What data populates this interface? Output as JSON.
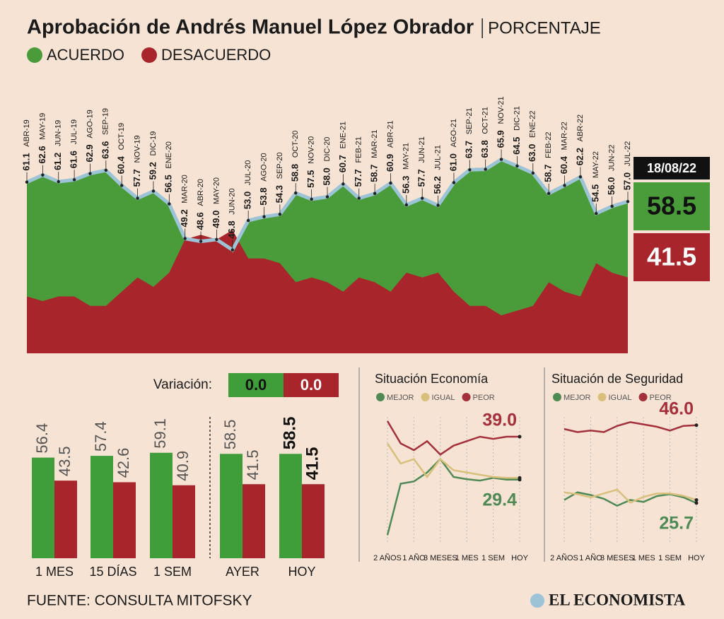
{
  "chart_data": [
    {
      "type": "area",
      "title": "Aprobación de Andrés Manuel López Obrador",
      "subtitle": "PORCENTAJE",
      "categories": [
        "ABR-19",
        "MAY-19",
        "JUN-19",
        "JUL-19",
        "AGO-19",
        "SEP-19",
        "OCT-19",
        "NOV-19",
        "DIC-19",
        "ENE-20",
        "MAR-20",
        "ABR-20",
        "MAY-20",
        "JUN-20",
        "JUL-20",
        "AGO-20",
        "SEP-20",
        "OCT-20",
        "NOV-20",
        "DIC-20",
        "ENE-21",
        "FEB-21",
        "MAR-21",
        "ABR-21",
        "MAY-21",
        "JUN-21",
        "JUL-21",
        "AGO-21",
        "SEP-21",
        "OCT-21",
        "NOV-21",
        "DIC-21",
        "ENE-22",
        "FEB-22",
        "MAR-22",
        "ABR-22",
        "MAY-22",
        "JUN-22",
        "JUL-22"
      ],
      "series": [
        {
          "name": "ACUERDO",
          "color": "#4a9c3a",
          "values": [
            61.1,
            62.6,
            61.2,
            61.6,
            62.9,
            63.6,
            60.4,
            57.7,
            59.2,
            56.5,
            49.2,
            48.6,
            49,
            46.8,
            53,
            53.8,
            54.3,
            58.8,
            57.5,
            58,
            60.7,
            57.7,
            58.7,
            60.9,
            56.3,
            57.7,
            56.2,
            61,
            63.7,
            63.8,
            65.9,
            64.5,
            63,
            58.7,
            60.4,
            62.2,
            54.5,
            56,
            57
          ],
          "value_labels": [
            "61.1",
            "62.6",
            "61.2",
            "61.6",
            "62.9",
            "63.6",
            "60.4",
            "57.7",
            "59.2",
            "56.5",
            "49.2",
            "48.6",
            "49.0",
            "46.8",
            "53.0",
            "53.8",
            "54.3",
            "58.8",
            "57.5",
            "58.0",
            "60.7",
            "57.7",
            "58.7",
            "60.9",
            "56.3",
            "57.7",
            "56.2",
            "61.0",
            "63.7",
            "63.8",
            "65.9",
            "64.5",
            "63.0",
            "58.7",
            "60.4",
            "62.2",
            "54.5",
            "56.0",
            "57.0"
          ]
        },
        {
          "name": "DESACUERDO",
          "color": "#a8262b",
          "values": [
            37,
            36,
            37,
            37,
            35,
            35,
            38,
            41,
            39,
            42,
            49,
            50,
            49,
            51,
            45,
            45,
            44,
            40,
            41,
            40,
            38,
            41,
            40,
            38,
            42,
            41,
            42,
            38,
            35,
            35,
            33,
            34,
            35,
            40,
            38,
            37,
            44,
            42,
            41
          ]
        }
      ],
      "line_color": "#9cc3d6",
      "ylim": [
        25,
        70
      ],
      "latest": {
        "date": "18/08/22",
        "values": [
          58.5,
          41.5
        ]
      }
    },
    {
      "type": "bar",
      "categories": [
        "1 MES",
        "15 DÍAS",
        "1 SEM",
        "AYER",
        "HOY"
      ],
      "series": [
        {
          "color": "#3f9e3a",
          "values": [
            56.4,
            57.4,
            59.1,
            58.5,
            58.5
          ]
        },
        {
          "color": "#a8262b",
          "values": [
            43.5,
            42.6,
            40.9,
            41.5,
            41.5
          ]
        }
      ],
      "ylim": [
        0,
        80
      ],
      "variation": {
        "label": "Variación:",
        "values": [
          0,
          0
        ],
        "value_labels": [
          "0.0",
          "0.0"
        ]
      }
    },
    {
      "type": "line",
      "title": "Situación Economía",
      "categories": [
        "2 AÑOS",
        null,
        "1 AÑO",
        null,
        "3 MESES",
        null,
        "1 MES",
        null,
        "1 SEM",
        null,
        "HOY"
      ],
      "series": [
        {
          "name": "MEJOR",
          "color": "#4f8a55",
          "values": [
            17,
            28.5,
            29,
            31,
            34,
            30,
            29.5,
            29.2,
            29.8,
            29.4,
            29.4
          ],
          "last_label": "29.4"
        },
        {
          "name": "IGUAL",
          "color": "#d8c07c",
          "values": [
            37.5,
            33,
            34,
            30,
            34,
            31.5,
            31,
            30.5,
            30,
            29.8,
            29.8
          ]
        },
        {
          "name": "PEOR",
          "color": "#a3303a",
          "values": [
            42.5,
            37.5,
            36,
            38,
            35,
            37,
            38,
            39,
            38.5,
            39,
            39
          ],
          "last_label": "39.0"
        }
      ],
      "ylim": [
        15,
        45
      ]
    },
    {
      "type": "line",
      "title": "Situación de Seguridad",
      "categories": [
        "2 AÑOS",
        null,
        "1 AÑO",
        null,
        "3 MESES",
        null,
        "1 MES",
        null,
        "1 SEM",
        null,
        "HOY"
      ],
      "series": [
        {
          "name": "MEJOR",
          "color": "#4f8a55",
          "values": [
            26.5,
            28.5,
            27.8,
            26.8,
            25,
            26.5,
            26,
            27.5,
            28,
            27.2,
            25.7
          ],
          "last_label": "25.7"
        },
        {
          "name": "IGUAL",
          "color": "#d8c07c",
          "values": [
            28.5,
            28,
            27.2,
            28.2,
            29.2,
            25.8,
            27.3,
            28.2,
            28.2,
            27.6,
            26.5
          ]
        },
        {
          "name": "PEOR",
          "color": "#a3303a",
          "values": [
            45,
            44.2,
            44.6,
            44.2,
            45.8,
            46.8,
            46.2,
            45.6,
            44.6,
            45.8,
            46
          ],
          "last_label": "46.0"
        }
      ],
      "ylim": [
        15,
        50
      ]
    }
  ],
  "source": "FUENTE: CONSULTA MITOFSKY",
  "logo": "EL ECONOMISTA"
}
